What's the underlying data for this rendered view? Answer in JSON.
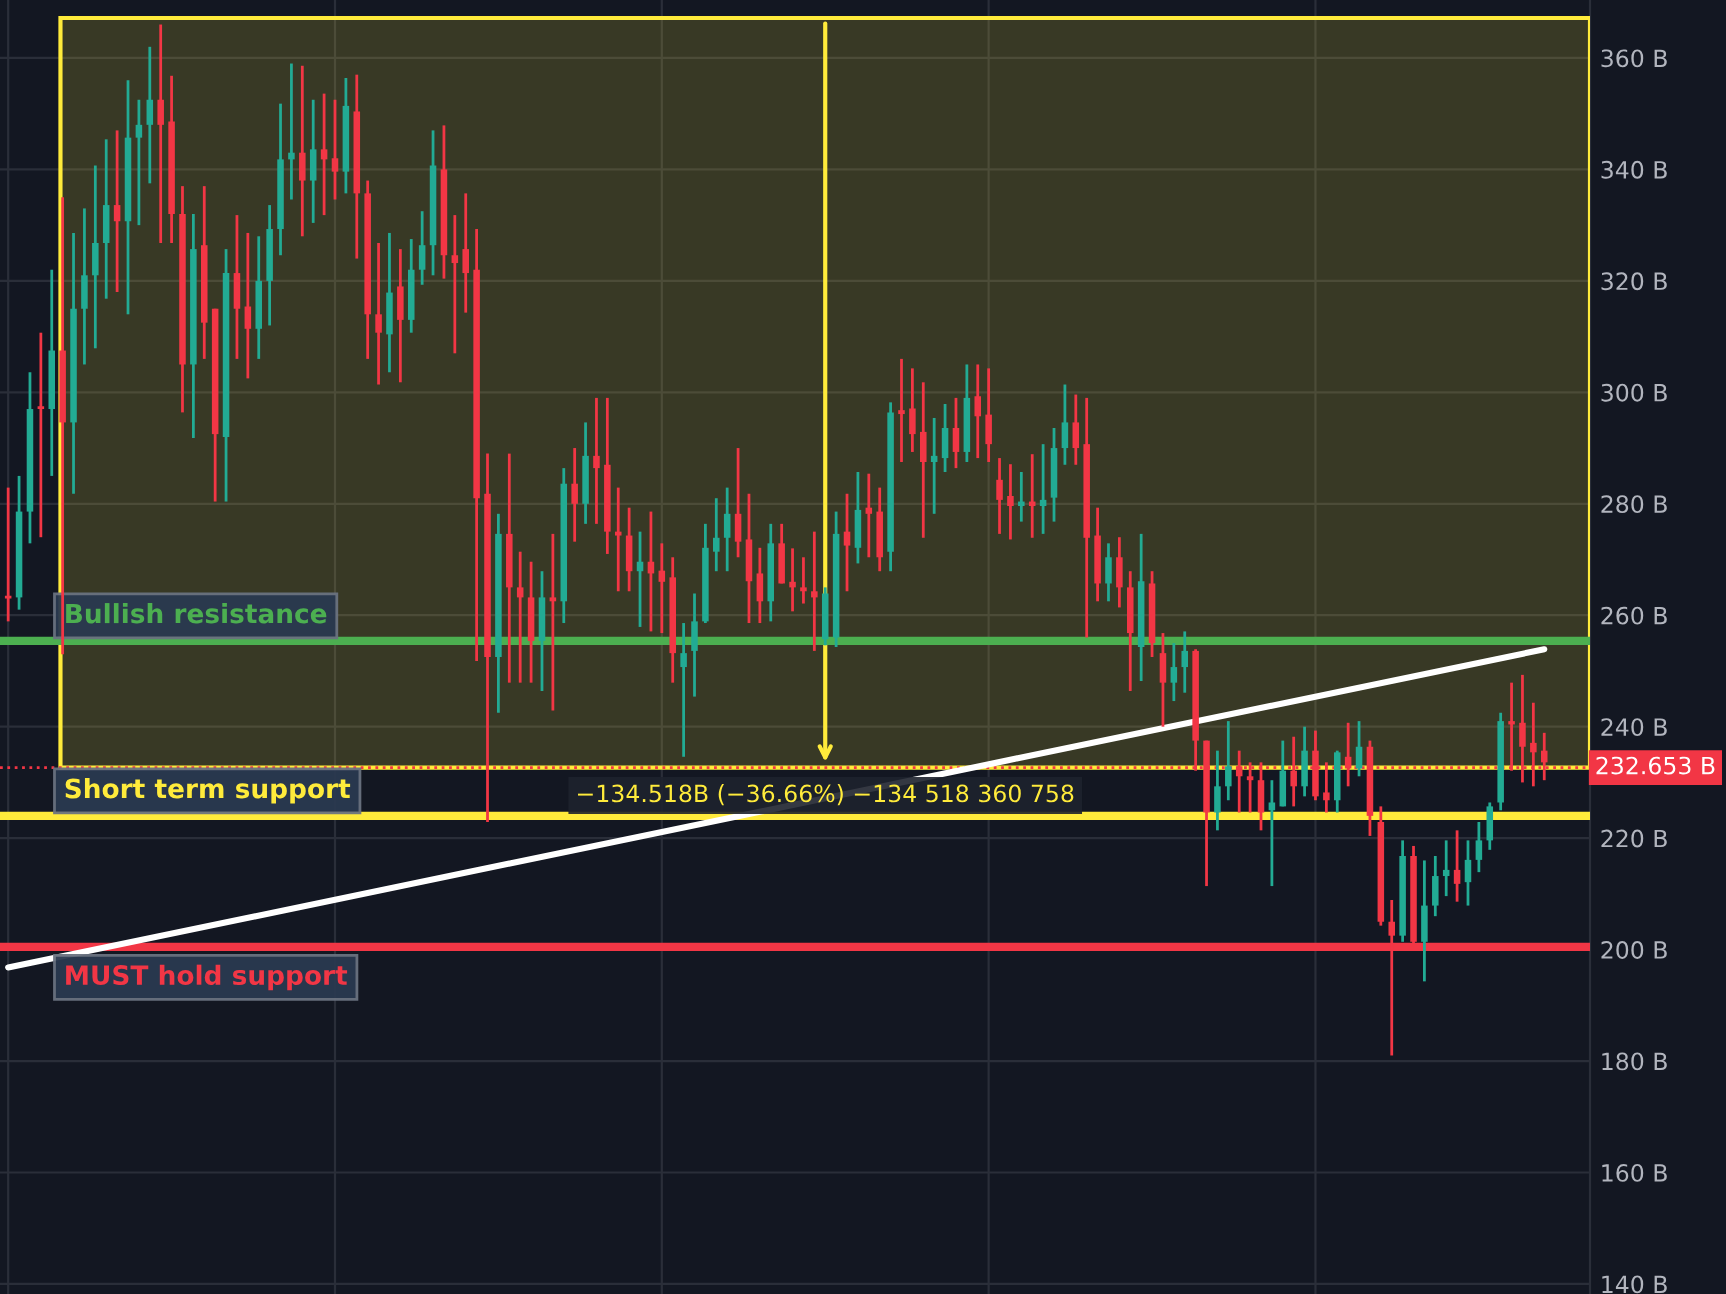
{
  "chart_data": {
    "type": "candlestick",
    "categories": [
      null,
      null,
      null,
      null,
      null,
      null,
      null,
      null,
      null,
      null,
      null,
      null,
      null,
      null,
      null,
      null,
      null,
      null,
      null,
      null,
      null,
      null,
      null,
      null,
      null,
      null,
      null,
      null,
      null,
      null,
      null,
      null,
      null,
      null,
      null,
      null,
      null,
      null,
      null,
      null,
      null,
      null,
      null,
      null,
      null,
      null,
      null,
      null,
      null,
      null,
      null,
      null,
      null,
      null,
      null,
      null,
      null,
      null,
      null,
      null,
      null,
      null,
      null,
      null,
      null,
      null,
      null,
      null,
      null,
      null,
      null,
      null,
      null,
      null,
      null,
      null,
      null,
      null,
      null,
      null,
      null,
      null,
      null,
      null,
      null,
      null,
      null,
      null,
      null,
      null,
      null,
      null,
      null,
      null,
      null,
      null,
      null,
      null,
      null,
      null,
      null,
      null,
      null,
      null,
      null,
      null,
      null,
      null,
      null,
      null,
      null,
      null,
      null,
      null,
      null,
      null,
      null,
      null,
      null,
      null,
      null,
      null,
      null,
      null,
      null,
      null,
      null,
      null,
      null,
      null,
      null,
      null,
      null,
      null,
      null,
      null,
      null,
      null,
      null,
      null,
      null,
      null
    ],
    "ohlc": [
      [
        263.5,
        282.9,
        258.9,
        263
      ],
      [
        263.2,
        285,
        261,
        278.6
      ],
      [
        278.6,
        303.6,
        272.9,
        297
      ],
      [
        297.5,
        310.7,
        274,
        297
      ],
      [
        297,
        322,
        285,
        307.5
      ],
      [
        307.5,
        335,
        253,
        294.6
      ],
      [
        294.6,
        328.6,
        281.8,
        315
      ],
      [
        315,
        333,
        305,
        321
      ],
      [
        321,
        340.7,
        307.9,
        326.8
      ],
      [
        326.8,
        345.4,
        316.8,
        333.6
      ],
      [
        333.6,
        347,
        318,
        330.7
      ],
      [
        330.7,
        356,
        314,
        345.7
      ],
      [
        345.7,
        352.5,
        330,
        348
      ],
      [
        348,
        362,
        337.5,
        352.5
      ],
      [
        352.5,
        366,
        326.8,
        348
      ],
      [
        348.6,
        356.8,
        326.8,
        332
      ],
      [
        332,
        337,
        296.4,
        305
      ],
      [
        305,
        332,
        291.8,
        325.7
      ],
      [
        326.4,
        337,
        306,
        312.5
      ],
      [
        315,
        315,
        280.4,
        292.5
      ],
      [
        292,
        325.7,
        280.4,
        321.4
      ],
      [
        321.4,
        331.8,
        306,
        315
      ],
      [
        315.4,
        328.6,
        302.5,
        311.4
      ],
      [
        311.4,
        328,
        306,
        320
      ],
      [
        320,
        333.6,
        312,
        329.3
      ],
      [
        329.3,
        351.8,
        324.6,
        341.8
      ],
      [
        341.8,
        359,
        334.6,
        343
      ],
      [
        343,
        358.6,
        328,
        338
      ],
      [
        338,
        352.5,
        330.4,
        343.6
      ],
      [
        343.6,
        353.6,
        331.8,
        341.8
      ],
      [
        342,
        352.5,
        334.6,
        339.6
      ],
      [
        339.6,
        356.4,
        335.7,
        351.4
      ],
      [
        350.4,
        357,
        324,
        335.7
      ],
      [
        335.7,
        338,
        306,
        314
      ],
      [
        314,
        326.8,
        301.4,
        310.7
      ],
      [
        310.4,
        328.6,
        303.6,
        317.9
      ],
      [
        319,
        325.7,
        301.8,
        313
      ],
      [
        313,
        327.5,
        310.7,
        322
      ],
      [
        322,
        332.5,
        319.3,
        326.4
      ],
      [
        326.4,
        347,
        321,
        340.7
      ],
      [
        340,
        347.9,
        320.4,
        324.6
      ],
      [
        324.6,
        331.8,
        307,
        323.2
      ],
      [
        325.7,
        335.7,
        314.3,
        321.4
      ],
      [
        322,
        329.3,
        251.8,
        281
      ],
      [
        281.8,
        289,
        222.9,
        252.5
      ],
      [
        252.5,
        278.2,
        242.5,
        274.6
      ],
      [
        274.6,
        289,
        247.9,
        265
      ],
      [
        265,
        271.4,
        247.9,
        263.2
      ],
      [
        263.2,
        269.6,
        247.9,
        255.4
      ],
      [
        255.4,
        267.9,
        246.4,
        263.2
      ],
      [
        263.2,
        274.6,
        242.9,
        262.5
      ],
      [
        262.5,
        286.4,
        258.6,
        283.6
      ],
      [
        283.6,
        290,
        273.2,
        280
      ],
      [
        280,
        294.6,
        276.4,
        288.6
      ],
      [
        288.6,
        299,
        276.4,
        286.4
      ],
      [
        287,
        299,
        271,
        275
      ],
      [
        275,
        282.9,
        264.3,
        274.3
      ],
      [
        274.3,
        279.3,
        264.3,
        267.9
      ],
      [
        267.9,
        275,
        257.9,
        269.6
      ],
      [
        269.6,
        278.6,
        257.1,
        267.5
      ],
      [
        268,
        272.9,
        256.8,
        266
      ],
      [
        266.8,
        270.4,
        247.9,
        253.2
      ],
      [
        250.7,
        258.6,
        234.6,
        253.2
      ],
      [
        253.6,
        263.9,
        245.4,
        258.9
      ],
      [
        258.9,
        276.4,
        258.6,
        272.1
      ],
      [
        271.4,
        281,
        267.9,
        273.9
      ],
      [
        273.9,
        282.9,
        267.9,
        278.2
      ],
      [
        278.2,
        290,
        270.4,
        273.2
      ],
      [
        273.6,
        281.8,
        258.6,
        266.1
      ],
      [
        267.5,
        272.1,
        258.6,
        262.5
      ],
      [
        262.5,
        276.4,
        258.9,
        272.9
      ],
      [
        272.9,
        276.4,
        265.7,
        265.7
      ],
      [
        266,
        272,
        260.7,
        265
      ],
      [
        265,
        270.4,
        262.1,
        264.3
      ],
      [
        264.3,
        275,
        253.6,
        263.2
      ],
      [
        255.7,
        265,
        254.6,
        263.9
      ],
      [
        256,
        278.6,
        254.3,
        274.6
      ],
      [
        275,
        281.8,
        264.3,
        272.5
      ],
      [
        272.1,
        285.7,
        269.3,
        278.9
      ],
      [
        279.3,
        285.4,
        270.4,
        278.2
      ],
      [
        278.6,
        282.9,
        267.9,
        270.4
      ],
      [
        271.4,
        298.2,
        267.9,
        296.4
      ],
      [
        296.8,
        306,
        287.5,
        296.1
      ],
      [
        297.1,
        304.3,
        289.3,
        292.5
      ],
      [
        292.9,
        301.8,
        273.9,
        287.5
      ],
      [
        287.5,
        295.4,
        278.2,
        288.6
      ],
      [
        288.2,
        297.9,
        285.7,
        293.6
      ],
      [
        293.6,
        299,
        286.4,
        289.3
      ],
      [
        289.3,
        305,
        287.5,
        299
      ],
      [
        299.3,
        305,
        288.2,
        295.7
      ],
      [
        296,
        304.3,
        287.5,
        290.7
      ],
      [
        284.3,
        288.2,
        274.6,
        280.7
      ],
      [
        281.4,
        287.1,
        273.6,
        279.6
      ],
      [
        279.6,
        285.7,
        276.8,
        280.4
      ],
      [
        280.4,
        288.9,
        273.9,
        279.6
      ],
      [
        279.6,
        290.7,
        274.6,
        280.7
      ],
      [
        281.1,
        293.6,
        276.8,
        290
      ],
      [
        290,
        301.4,
        287,
        294.6
      ],
      [
        294.6,
        299.6,
        287,
        290
      ],
      [
        290.7,
        299,
        256,
        273.9
      ],
      [
        274.3,
        279.3,
        262.5,
        265.7
      ],
      [
        265.7,
        272.9,
        262.5,
        270.4
      ],
      [
        270.4,
        274,
        261.4,
        265
      ],
      [
        265,
        267.9,
        246.4,
        256.8
      ],
      [
        254.3,
        274.6,
        248.2,
        266.1
      ],
      [
        265.7,
        267.9,
        252.5,
        255
      ],
      [
        253.2,
        256.8,
        240,
        247.9
      ],
      [
        247.9,
        255,
        244.6,
        250.7
      ],
      [
        250.7,
        257.1,
        246.1,
        253.6
      ],
      [
        253.6,
        253.9,
        232.1,
        237.5
      ],
      [
        237.5,
        237.5,
        211.4,
        224.6
      ],
      [
        224.6,
        235.7,
        221.4,
        229.3
      ],
      [
        229.3,
        241,
        226.8,
        232.9
      ],
      [
        232.9,
        235.7,
        224.6,
        231.1
      ],
      [
        231.1,
        233.6,
        224.6,
        230.4
      ],
      [
        230.4,
        233.6,
        221.4,
        224.6
      ],
      [
        225,
        230.4,
        211.4,
        226.4
      ],
      [
        225.7,
        237.5,
        225.7,
        232.1
      ],
      [
        232.1,
        238.2,
        225.7,
        229.3
      ],
      [
        229.3,
        240,
        227.5,
        235.7
      ],
      [
        235.7,
        239.3,
        226.8,
        227.5
      ],
      [
        228.2,
        233.6,
        224.6,
        226.8
      ],
      [
        226.8,
        235.7,
        224.6,
        235.4
      ],
      [
        234.6,
        240.7,
        229.3,
        232.5
      ],
      [
        232.5,
        241,
        231.1,
        236.4
      ],
      [
        236.4,
        237.5,
        220.4,
        224
      ],
      [
        222.9,
        225.7,
        204.3,
        205
      ],
      [
        205,
        208.9,
        181,
        202.5
      ],
      [
        202.5,
        219.6,
        201.4,
        216.8
      ],
      [
        216.8,
        218.6,
        200.7,
        201.4
      ],
      [
        201.4,
        216,
        194.3,
        207.9
      ],
      [
        207.9,
        216.8,
        206,
        213.2
      ],
      [
        213.2,
        219.6,
        209.6,
        214.3
      ],
      [
        214.3,
        221.4,
        208.6,
        211.8
      ],
      [
        212.1,
        219.6,
        207.9,
        216.1
      ],
      [
        216.1,
        222.9,
        213.9,
        219.6
      ],
      [
        219.6,
        226.4,
        217.9,
        225.7
      ],
      [
        226.4,
        242.5,
        225,
        241
      ],
      [
        241,
        247.9,
        232.1,
        240.4
      ],
      [
        240.7,
        249.3,
        230,
        236.4
      ],
      [
        237.1,
        244.3,
        229.3,
        235.4
      ],
      [
        235.7,
        238.9,
        230.4,
        233.6
      ]
    ],
    "series": [
      {
        "type": "line",
        "color": "#ffffff",
        "values": [
          196.8,
          null,
          null,
          null,
          null,
          null,
          null,
          null,
          null,
          null,
          null,
          null,
          null,
          null,
          null,
          null,
          null,
          null,
          null,
          null,
          null,
          null,
          null,
          null,
          null,
          null,
          null,
          null,
          null,
          null,
          null,
          null,
          null,
          null,
          null,
          null,
          null,
          null,
          null,
          null,
          null,
          null,
          null,
          null,
          null,
          null,
          null,
          null,
          null,
          null,
          null,
          null,
          null,
          null,
          null,
          null,
          null,
          null,
          null,
          null,
          null,
          null,
          null,
          null,
          null,
          null,
          null,
          null,
          null,
          null,
          null,
          null,
          null,
          null,
          null,
          null,
          null,
          null,
          null,
          null,
          null,
          null,
          null,
          null,
          null,
          null,
          null,
          null,
          null,
          null,
          null,
          null,
          null,
          null,
          null,
          null,
          null,
          null,
          null,
          null,
          null,
          null,
          null,
          null,
          null,
          null,
          null,
          null,
          null,
          null,
          null,
          null,
          null,
          null,
          null,
          null,
          null,
          null,
          null,
          null,
          null,
          null,
          null,
          null,
          null,
          null,
          null,
          null,
          null,
          null,
          null,
          null,
          null,
          null,
          null,
          null,
          null,
          null,
          null,
          null,
          null,
          253.9
        ]
      }
    ],
    "ylim": [
      138.2,
      370.4
    ],
    "yticks": [
      {
        "value": 140,
        "label": "140 B"
      },
      {
        "value": 160,
        "label": "160 B"
      },
      {
        "value": 180,
        "label": "180 B"
      },
      {
        "value": 200,
        "label": "200 B"
      },
      {
        "value": 220,
        "label": "220 B"
      },
      {
        "value": 240,
        "label": "240 B"
      },
      {
        "value": 260,
        "label": "260 B"
      },
      {
        "value": 280,
        "label": "280 B"
      },
      {
        "value": 300,
        "label": "300 B"
      },
      {
        "value": 320,
        "label": "320 B"
      },
      {
        "value": 340,
        "label": "340 B"
      },
      {
        "value": 360,
        "label": "360 B"
      }
    ],
    "tick_labels": "y",
    "grid": true,
    "bands": [
      {
        "axis": "y",
        "from": 232.653,
        "to": 367.171,
        "color": "#ffeb3b",
        "label": "−134.518B (−36.66%) −134 518 360 758"
      }
    ],
    "ref_lines": [
      {
        "axis": "y",
        "value": 232.653,
        "label": "232.653 B",
        "color": "#f23645",
        "line_style": "dotted"
      },
      {
        "axis": "y",
        "value": 255.4,
        "label": "Bullish resistance",
        "color": "#4caf50",
        "line_style": "solid"
      },
      {
        "axis": "y",
        "value": 224,
        "label": "Short term support",
        "color": "#ffeb3b",
        "line_style": "solid"
      },
      {
        "axis": "y",
        "value": 200.5,
        "label": "MUST hold support",
        "color": "#f23645",
        "line_style": "solid"
      }
    ]
  }
}
